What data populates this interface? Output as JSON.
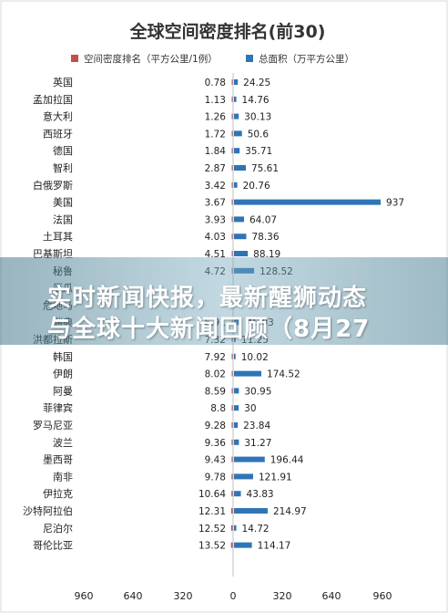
{
  "banner": {
    "line1": "实时新闻快报，最新醒狮动态",
    "line2": "与全球十大新闻回顾（8月27"
  },
  "chart_data": {
    "type": "bar",
    "title": "全球空间密度排名(前30)",
    "orientation": "horizontal-back-to-back",
    "legend_position": "top",
    "series": [
      {
        "name": "空间密度排名（平方公里/1例）",
        "color": "#C0504D",
        "side": "left",
        "values": [
          0.78,
          1.13,
          1.26,
          1.72,
          1.84,
          2.87,
          3.42,
          3.67,
          3.93,
          4.03,
          4.51,
          4.72,
          null,
          null,
          6.91,
          7.32,
          7.92,
          8.02,
          8.59,
          8.8,
          9.28,
          9.36,
          9.43,
          9.78,
          10.64,
          12.31,
          12.52,
          13.52
        ],
        "labels": [
          "0.78",
          "1.13",
          "1.26",
          "1.72",
          "1.84",
          "2.87",
          "3.42",
          "3.67",
          "3.93",
          "4.03",
          "4.51",
          "4.72",
          null,
          null,
          "6.91",
          "7.32",
          "7.92",
          "8.02",
          "8.59",
          "8.8",
          "9.28",
          "9.36",
          "9.43",
          "9.78",
          "10.64",
          "12.31",
          "12.52",
          "13.52"
        ]
      },
      {
        "name": "总面积（万平方公里）",
        "color": "#2E75B6",
        "side": "right",
        "values": [
          24.25,
          14.76,
          30.13,
          50.6,
          35.71,
          75.61,
          20.76,
          937,
          64.07,
          78.36,
          88.19,
          128.52,
          null,
          null,
          45.03,
          11.25,
          10.02,
          174.52,
          30.95,
          30,
          23.84,
          31.27,
          196.44,
          121.91,
          43.83,
          214.97,
          14.72,
          114.17
        ],
        "labels": [
          "24.25",
          "14.76",
          "30.13",
          "50.6",
          "35.71",
          "75.61",
          "20.76",
          "937",
          "64.07",
          "78.36",
          "88.19",
          "128.52",
          null,
          null,
          "45.03",
          "11.25",
          "10.02",
          "174.52",
          "30.95",
          "30",
          "23.84",
          "31.27",
          "196.44",
          "121.91",
          "43.83",
          "214.97",
          "14.72",
          "114.17"
        ]
      }
    ],
    "categories": [
      "英国",
      "孟加拉国",
      "意大利",
      "西班牙",
      "德国",
      "智利",
      "白俄罗斯",
      "美国",
      "法国",
      "土耳其",
      "巴基斯坦",
      "秘鲁",
      "厄瓜",
      "",
      "瑞典",
      "洪都拉斯",
      "韩国",
      "伊朗",
      "阿曼",
      "菲律宾",
      "罗马尼亚",
      "波兰",
      "墨西哥",
      "南非",
      "伊拉克",
      "沙特阿拉伯",
      "尼泊尔",
      "哥伦比亚"
    ],
    "categories_hidden": [
      "",
      "",
      "",
      "",
      "",
      "",
      "",
      "",
      "",
      "",
      "",
      "",
      "",
      "危地马",
      "",
      "",
      "",
      "",
      "",
      "",
      "",
      "",
      "",
      "",
      "",
      "",
      "",
      ""
    ],
    "xtick_labels": [
      "960",
      "640",
      "320",
      "0",
      "320",
      "640",
      "960"
    ],
    "xlim": [
      -960,
      960
    ],
    "grid": false
  }
}
